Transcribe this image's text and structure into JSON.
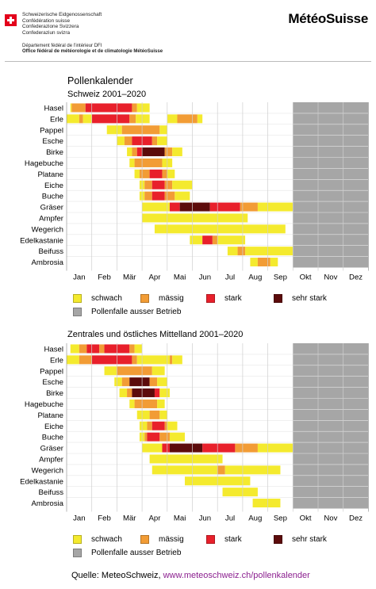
{
  "header": {
    "gov_lines": [
      "Schweizerische Eidgenossenschaft",
      "Confédération suisse",
      "Confederazione Svizzera",
      "Confederaziun svizra"
    ],
    "dept_line": "Département fédéral de l’intérieur DFI",
    "office_line": "Office fédéral de météorologie et de climatologie MétéoSuisse",
    "logo": "MétéoSuisse"
  },
  "title": "Pollenkalender",
  "source": {
    "prefix": "Quelle: MeteoSchweiz, ",
    "url": "www.meteoschweiz.ch/pollenkalender"
  },
  "legend": {
    "schwach": "schwach",
    "maessig": "mässig",
    "stark": "stark",
    "sehr_stark": "sehr stark",
    "ausser": "Pollenfalle ausser Betrieb"
  },
  "colors": {
    "schwach": "#f4ea2e",
    "maessig": "#f29c35",
    "stark": "#e8202b",
    "sehr_stark": "#5c0b0b",
    "ausser": "#a6a6a6",
    "grid_bg": "#ffffff",
    "row_separator": "#e6e6e6"
  },
  "chart_data": [
    {
      "type": "table",
      "title": "Schweiz 2001–2020",
      "x_unit": "months (0 = 1 Jan, 12 = 31 Dec)",
      "months": [
        "Jan",
        "Feb",
        "Mär",
        "Apr",
        "Mai",
        "Jun",
        "Jul",
        "Aug",
        "Sep",
        "Okt",
        "Nov",
        "Dez"
      ],
      "levels": [
        "schwach",
        "mässig",
        "stark",
        "sehr stark"
      ],
      "out_of_service": [
        9.0,
        12.0
      ],
      "rows": [
        {
          "name": "Hasel",
          "segments": [
            [
              0.15,
              0.2,
              "schwach"
            ],
            [
              0.2,
              0.75,
              "maessig"
            ],
            [
              0.75,
              2.6,
              "stark"
            ],
            [
              2.6,
              2.8,
              "maessig"
            ],
            [
              2.8,
              3.3,
              "schwach"
            ]
          ]
        },
        {
          "name": "Erle",
          "segments": [
            [
              0.0,
              0.5,
              "schwach"
            ],
            [
              0.5,
              0.65,
              "maessig"
            ],
            [
              0.65,
              1.0,
              "schwach"
            ],
            [
              1.0,
              2.5,
              "stark"
            ],
            [
              2.5,
              2.75,
              "maessig"
            ],
            [
              2.75,
              3.3,
              "schwach"
            ],
            [
              4.0,
              4.4,
              "schwach"
            ],
            [
              4.4,
              5.2,
              "maessig"
            ],
            [
              5.2,
              5.4,
              "schwach"
            ]
          ]
        },
        {
          "name": "Pappel",
          "segments": [
            [
              1.6,
              2.2,
              "schwach"
            ],
            [
              2.2,
              3.7,
              "maessig"
            ],
            [
              3.7,
              4.0,
              "schwach"
            ]
          ]
        },
        {
          "name": "Esche",
          "segments": [
            [
              2.0,
              2.3,
              "schwach"
            ],
            [
              2.3,
              2.6,
              "maessig"
            ],
            [
              2.6,
              3.4,
              "stark"
            ],
            [
              3.4,
              3.6,
              "maessig"
            ],
            [
              3.6,
              4.0,
              "schwach"
            ]
          ]
        },
        {
          "name": "Birke",
          "segments": [
            [
              2.4,
              2.6,
              "schwach"
            ],
            [
              2.6,
              2.8,
              "maessig"
            ],
            [
              2.8,
              3.0,
              "stark"
            ],
            [
              3.0,
              3.9,
              "sehr_stark"
            ],
            [
              3.9,
              4.2,
              "maessig"
            ],
            [
              4.2,
              4.6,
              "schwach"
            ]
          ]
        },
        {
          "name": "Hagebuche",
          "segments": [
            [
              2.5,
              2.7,
              "schwach"
            ],
            [
              2.7,
              3.8,
              "maessig"
            ],
            [
              3.8,
              4.2,
              "schwach"
            ]
          ]
        },
        {
          "name": "Platane",
          "segments": [
            [
              2.7,
              2.9,
              "schwach"
            ],
            [
              2.9,
              3.3,
              "maessig"
            ],
            [
              3.3,
              3.8,
              "stark"
            ],
            [
              3.8,
              4.0,
              "maessig"
            ],
            [
              4.0,
              4.3,
              "schwach"
            ]
          ]
        },
        {
          "name": "Eiche",
          "segments": [
            [
              2.9,
              3.1,
              "schwach"
            ],
            [
              3.1,
              3.4,
              "maessig"
            ],
            [
              3.4,
              3.9,
              "stark"
            ],
            [
              3.9,
              4.2,
              "maessig"
            ],
            [
              4.2,
              5.0,
              "schwach"
            ]
          ]
        },
        {
          "name": "Buche",
          "segments": [
            [
              2.9,
              3.1,
              "schwach"
            ],
            [
              3.1,
              3.4,
              "maessig"
            ],
            [
              3.4,
              3.9,
              "stark"
            ],
            [
              3.9,
              4.3,
              "maessig"
            ],
            [
              4.3,
              4.9,
              "schwach"
            ]
          ]
        },
        {
          "name": "Gräser",
          "segments": [
            [
              3.0,
              4.1,
              "schwach"
            ],
            [
              4.1,
              4.5,
              "stark"
            ],
            [
              4.5,
              5.7,
              "sehr_stark"
            ],
            [
              5.7,
              6.9,
              "stark"
            ],
            [
              6.9,
              7.6,
              "maessig"
            ],
            [
              7.6,
              9.0,
              "schwach"
            ]
          ]
        },
        {
          "name": "Ampfer",
          "segments": [
            [
              3.0,
              7.2,
              "schwach"
            ]
          ]
        },
        {
          "name": "Wegerich",
          "segments": [
            [
              3.5,
              8.7,
              "schwach"
            ]
          ]
        },
        {
          "name": "Edelkastanie",
          "segments": [
            [
              4.9,
              5.4,
              "schwach"
            ],
            [
              5.4,
              5.8,
              "stark"
            ],
            [
              5.8,
              6.0,
              "maessig"
            ],
            [
              6.0,
              7.1,
              "schwach"
            ]
          ]
        },
        {
          "name": "Beifuss",
          "segments": [
            [
              6.4,
              6.8,
              "schwach"
            ],
            [
              6.8,
              7.1,
              "maessig"
            ],
            [
              7.1,
              9.0,
              "schwach"
            ]
          ]
        },
        {
          "name": "Ambrosia",
          "segments": [
            [
              7.3,
              7.6,
              "schwach"
            ],
            [
              7.6,
              8.1,
              "maessig"
            ],
            [
              8.1,
              8.4,
              "schwach"
            ]
          ]
        }
      ]
    },
    {
      "type": "table",
      "title": "Zentrales und östliches Mittelland 2001–2020",
      "x_unit": "months (0 = 1 Jan, 12 = 31 Dec)",
      "months": [
        "Jan",
        "Feb",
        "Mär",
        "Apr",
        "Mai",
        "Jun",
        "Jul",
        "Aug",
        "Sep",
        "Okt",
        "Nov",
        "Dez"
      ],
      "levels": [
        "schwach",
        "mässig",
        "stark",
        "sehr stark"
      ],
      "out_of_service": [
        9.0,
        12.0
      ],
      "rows": [
        {
          "name": "Hasel",
          "segments": [
            [
              0.15,
              0.5,
              "schwach"
            ],
            [
              0.5,
              0.8,
              "maessig"
            ],
            [
              0.8,
              1.3,
              "stark"
            ],
            [
              1.3,
              1.5,
              "maessig"
            ],
            [
              1.5,
              2.5,
              "stark"
            ],
            [
              2.5,
              2.7,
              "maessig"
            ],
            [
              2.7,
              3.0,
              "schwach"
            ]
          ]
        },
        {
          "name": "Erle",
          "segments": [
            [
              0.0,
              0.5,
              "schwach"
            ],
            [
              0.5,
              1.0,
              "maessig"
            ],
            [
              1.0,
              2.6,
              "stark"
            ],
            [
              2.6,
              2.8,
              "maessig"
            ],
            [
              2.8,
              4.1,
              "schwach"
            ],
            [
              4.1,
              4.2,
              "maessig"
            ],
            [
              4.2,
              4.6,
              "schwach"
            ]
          ]
        },
        {
          "name": "Pappel",
          "segments": [
            [
              1.5,
              2.0,
              "schwach"
            ],
            [
              2.0,
              3.4,
              "maessig"
            ],
            [
              3.4,
              3.9,
              "schwach"
            ]
          ]
        },
        {
          "name": "Esche",
          "segments": [
            [
              1.9,
              2.2,
              "schwach"
            ],
            [
              2.2,
              2.5,
              "maessig"
            ],
            [
              2.5,
              3.3,
              "sehr_stark"
            ],
            [
              3.3,
              3.6,
              "maessig"
            ],
            [
              3.6,
              4.0,
              "schwach"
            ]
          ]
        },
        {
          "name": "Birke",
          "segments": [
            [
              2.1,
              2.4,
              "schwach"
            ],
            [
              2.4,
              2.6,
              "maessig"
            ],
            [
              2.6,
              3.5,
              "sehr_stark"
            ],
            [
              3.5,
              3.7,
              "stark"
            ],
            [
              3.7,
              4.1,
              "schwach"
            ]
          ]
        },
        {
          "name": "Hagebuche",
          "segments": [
            [
              2.5,
              2.7,
              "schwach"
            ],
            [
              2.7,
              3.6,
              "maessig"
            ],
            [
              3.6,
              3.9,
              "schwach"
            ]
          ]
        },
        {
          "name": "Platane",
          "segments": [
            [
              2.8,
              3.3,
              "schwach"
            ],
            [
              3.3,
              3.7,
              "maessig"
            ],
            [
              3.7,
              4.0,
              "schwach"
            ]
          ]
        },
        {
          "name": "Eiche",
          "segments": [
            [
              2.9,
              3.2,
              "schwach"
            ],
            [
              3.2,
              3.4,
              "maessig"
            ],
            [
              3.4,
              3.9,
              "stark"
            ],
            [
              3.9,
              4.0,
              "maessig"
            ],
            [
              4.0,
              4.4,
              "schwach"
            ]
          ]
        },
        {
          "name": "Buche",
          "segments": [
            [
              2.9,
              3.1,
              "schwach"
            ],
            [
              3.1,
              3.2,
              "maessig"
            ],
            [
              3.2,
              3.7,
              "stark"
            ],
            [
              3.7,
              4.1,
              "maessig"
            ],
            [
              4.1,
              4.7,
              "schwach"
            ]
          ]
        },
        {
          "name": "Gräser",
          "segments": [
            [
              3.0,
              3.8,
              "schwach"
            ],
            [
              3.8,
              4.1,
              "stark"
            ],
            [
              4.1,
              5.4,
              "sehr_stark"
            ],
            [
              5.4,
              6.7,
              "stark"
            ],
            [
              6.7,
              7.0,
              "maessig"
            ],
            [
              7.0,
              7.6,
              "maessig"
            ],
            [
              7.6,
              9.0,
              "schwach"
            ]
          ]
        },
        {
          "name": "Ampfer",
          "segments": [
            [
              3.3,
              6.2,
              "schwach"
            ]
          ]
        },
        {
          "name": "Wegerich",
          "segments": [
            [
              3.4,
              6.0,
              "schwach"
            ],
            [
              6.0,
              6.3,
              "maessig"
            ],
            [
              6.3,
              8.5,
              "schwach"
            ]
          ]
        },
        {
          "name": "Edelkastanie",
          "segments": [
            [
              4.7,
              7.3,
              "schwach"
            ]
          ]
        },
        {
          "name": "Beifuss",
          "segments": [
            [
              6.2,
              7.6,
              "schwach"
            ]
          ]
        },
        {
          "name": "Ambrosia",
          "segments": [
            [
              7.4,
              8.5,
              "schwach"
            ]
          ]
        }
      ]
    }
  ]
}
